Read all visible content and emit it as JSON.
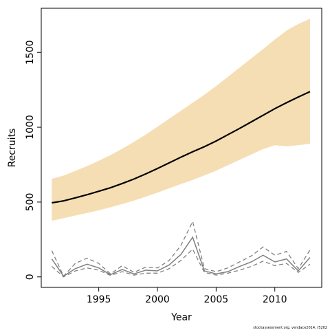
{
  "chart_data": {
    "type": "line",
    "xlabel": "Year",
    "ylabel": "Recruits",
    "xlim": [
      1990.1,
      2014.0
    ],
    "ylim": [
      -70,
      1795
    ],
    "x_ticks": [
      1995,
      2000,
      2005,
      2010
    ],
    "y_ticks": [
      0,
      500,
      1000,
      1500
    ],
    "footnote": "stockassessment.org, vendace2014, r5202",
    "colors": {
      "band": "#f5deb3",
      "line": "#000000",
      "obs": "#7f7f7f"
    },
    "x": [
      1991,
      1992,
      1993,
      1994,
      1995,
      1996,
      1997,
      1998,
      1999,
      2000,
      2001,
      2002,
      2003,
      2004,
      2005,
      2006,
      2007,
      2008,
      2009,
      2010,
      2011,
      2012,
      2013
    ],
    "series": [
      {
        "role": "band_upper",
        "values": [
          655,
          677,
          708,
          740,
          776,
          814,
          856,
          902,
          951,
          1003,
          1057,
          1110,
          1164,
          1217,
          1275,
          1337,
          1399,
          1460,
          1522,
          1586,
          1646,
          1690,
          1725
        ]
      },
      {
        "role": "band_lower",
        "values": [
          375,
          392,
          410,
          427,
          445,
          465,
          487,
          510,
          536,
          563,
          592,
          620,
          648,
          678,
          710,
          746,
          782,
          818,
          854,
          880,
          873,
          880,
          890
        ]
      },
      {
        "role": "mean",
        "values": [
          495,
          508,
          528,
          549,
          572,
          596,
          624,
          654,
          688,
          724,
          762,
          800,
          836,
          870,
          908,
          950,
          992,
          1036,
          1080,
          1124,
          1164,
          1202,
          1238
        ]
      },
      {
        "role": "obs",
        "values": [
          120,
          5,
          55,
          85,
          60,
          15,
          50,
          20,
          45,
          40,
          80,
          150,
          265,
          40,
          20,
          35,
          70,
          100,
          145,
          100,
          120,
          40,
          130
        ]
      },
      {
        "role": "obs_upper",
        "values": [
          175,
          5,
          90,
          125,
          90,
          20,
          75,
          30,
          65,
          60,
          110,
          210,
          370,
          55,
          35,
          60,
          100,
          140,
          200,
          145,
          170,
          55,
          180
        ]
      },
      {
        "role": "obs_lower",
        "values": [
          70,
          0,
          40,
          60,
          45,
          10,
          35,
          12,
          25,
          25,
          55,
          110,
          185,
          30,
          12,
          25,
          45,
          70,
          105,
          75,
          90,
          30,
          85
        ]
      }
    ]
  }
}
